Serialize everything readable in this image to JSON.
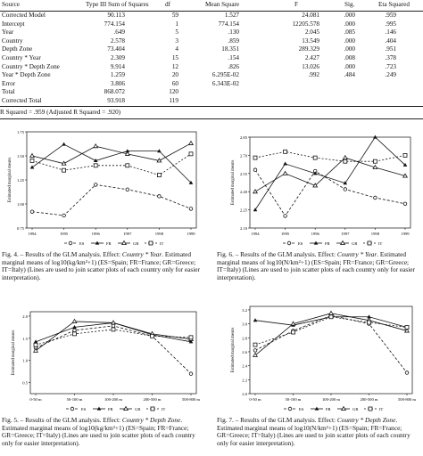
{
  "table": {
    "headers": [
      "Source",
      "Type III Sum of Squares",
      "df",
      "Mean Square",
      "F",
      "Sig.",
      "Eta Squared"
    ],
    "rows": [
      [
        "Corrected Model",
        "90.113",
        "59",
        "1.527",
        "24.081",
        ".000",
        ".959"
      ],
      [
        "Intercept",
        "774.154",
        "1",
        "774.154",
        "12205.578",
        ".000",
        ".995"
      ],
      [
        "Year",
        ".649",
        "5",
        ".130",
        "2.045",
        ".085",
        ".146"
      ],
      [
        "Country",
        "2.578",
        "3",
        ".859",
        "13.549",
        ".000",
        ".404"
      ],
      [
        "Depth Zone",
        "73.404",
        "4",
        "18.351",
        "289.329",
        ".000",
        ".951"
      ],
      [
        "Country * Year",
        "2.309",
        "15",
        ".154",
        "2.427",
        ".008",
        ".378"
      ],
      [
        "Country * Depth Zone",
        "9.914",
        "12",
        ".826",
        "13.026",
        ".000",
        ".723"
      ],
      [
        "Year * Depth Zone",
        "1.259",
        "20",
        "6.295E-02",
        ".992",
        ".484",
        ".249"
      ],
      [
        "Error",
        "3.806",
        "60",
        "6.343E-02",
        "",
        "",
        ""
      ],
      [
        "Total",
        "868.072",
        "120",
        "",
        "",
        "",
        ""
      ],
      [
        "Corrected Total",
        "93.918",
        "119",
        "",
        "",
        "",
        ""
      ]
    ],
    "r_squared": "R Squared = .959 (Adjusted R Squared = .920)"
  },
  "charts": [
    {
      "ylabel": "Estimated marginal means",
      "yticks": [
        "1.75",
        "1.50",
        "1.25",
        "1.00",
        "0.75"
      ],
      "xticks": [
        "1994",
        "1995",
        "1996",
        "1997",
        "1998",
        "1999"
      ],
      "legend": [
        "ES",
        "FR",
        "GR",
        "IT"
      ],
      "caption_lead": "Fig. 4. – Results of the GLM analysis. Effect: ",
      "caption_effect": "Country * Year",
      "caption_rest": ". Estimated marginal means of log10(kg/km²+1) (ES=Spain; FR=France; GR=Greece; IT=Italy) (Lines are used to join scatter plots of each country only for easier interpretation)."
    },
    {
      "ylabel": "Estimated marginal means",
      "yticks": [
        "2.85",
        "2.70",
        "2.55",
        "2.40",
        "2.25",
        "2.10"
      ],
      "xticks": [
        "1994",
        "1995",
        "1996",
        "1997",
        "1998",
        "1999"
      ],
      "legend": [
        "ES",
        "FR",
        "GR",
        "IT"
      ],
      "caption_lead": "Fig. 6. – Results of the GLM analysis. Effect: ",
      "caption_effect": "Country * Year",
      "caption_rest": ". Estimated marginal means of log10(N/km²+1) (ES=Spain; FR=France; GR=Greece; IT=Italy) (Lines are used to join scatter plots of each country only for easier interpretation)."
    },
    {
      "ylabel": "Estimated marginal means",
      "yticks": [
        "2.0",
        "1.5",
        "1.0",
        "0.5"
      ],
      "xticks": [
        "0-50 m",
        "50-100 m",
        "100-200 m",
        "200-500 m",
        "500-800 m"
      ],
      "legend": [
        "ES",
        "FR",
        "GR",
        "IT"
      ],
      "caption_lead": "Fig. 5. – Results of the GLM analysis. Effect: ",
      "caption_effect": "Country * Depth Zone",
      "caption_rest": ". Estimated marginal means of log10(kg/km²+1) (ES=Spain; FR=France; GR=Greece; IT=Italy) (Lines are used to join scatter plots of each country only for easier interpretation)."
    },
    {
      "ylabel": "Estimated marginal means",
      "yticks": [
        "3.2",
        "3.0",
        "2.8",
        "2.6",
        "2.4",
        "2.2",
        "2.0"
      ],
      "xticks": [
        "0-50 m",
        "50-100 m",
        "100-200 m",
        "200-500 m",
        "500-800 m"
      ],
      "legend": [
        "ES",
        "FR",
        "GR",
        "IT"
      ],
      "caption_lead": "Fig. 7. – Results of the GLM analysis. Effect: ",
      "caption_effect": "Country * Depth Zone",
      "caption_rest": ". Estimated marginal means of log10(N/km²+1) (ES=Spain; FR=France; GR=Greece; IT=Italy) (Lines are used to join scatter plots of each country only for easier interpretation)."
    }
  ],
  "chart_data": [
    {
      "type": "line",
      "x": [
        "1994",
        "1995",
        "1996",
        "1997",
        "1998",
        "1999"
      ],
      "ylim": [
        0.75,
        1.75
      ],
      "ylabel": "Estimated marginal means",
      "series": [
        {
          "name": "ES",
          "values": [
            0.92,
            0.88,
            1.2,
            1.15,
            1.08,
            0.95
          ]
        },
        {
          "name": "FR",
          "values": [
            1.38,
            1.62,
            1.45,
            1.55,
            1.55,
            1.22
          ]
        },
        {
          "name": "GR",
          "values": [
            1.5,
            1.42,
            1.6,
            1.52,
            1.45,
            1.63
          ]
        },
        {
          "name": "IT",
          "values": [
            1.45,
            1.35,
            1.4,
            1.4,
            1.3,
            1.52
          ]
        }
      ]
    },
    {
      "type": "line",
      "x": [
        "1994",
        "1995",
        "1996",
        "1997",
        "1998",
        "1999"
      ],
      "ylim": [
        2.1,
        2.85
      ],
      "ylabel": "Estimated marginal means",
      "series": [
        {
          "name": "ES",
          "values": [
            2.58,
            2.2,
            2.57,
            2.42,
            2.35,
            2.3
          ]
        },
        {
          "name": "FR",
          "values": [
            2.25,
            2.63,
            2.55,
            2.47,
            2.85,
            2.62
          ]
        },
        {
          "name": "GR",
          "values": [
            2.4,
            2.55,
            2.45,
            2.68,
            2.6,
            2.53
          ]
        },
        {
          "name": "IT",
          "values": [
            2.68,
            2.73,
            2.68,
            2.65,
            2.65,
            2.7
          ]
        }
      ]
    },
    {
      "type": "line",
      "x": [
        "0-50 m",
        "50-100 m",
        "100-200 m",
        "200-500 m",
        "500-800 m"
      ],
      "ylim": [
        0.25,
        2.1
      ],
      "ylabel": "Estimated marginal means",
      "series": [
        {
          "name": "ES",
          "values": [
            1.28,
            1.68,
            1.78,
            1.55,
            0.7
          ]
        },
        {
          "name": "FR",
          "values": [
            1.42,
            1.75,
            1.85,
            1.58,
            1.42
          ]
        },
        {
          "name": "GR",
          "values": [
            1.22,
            1.88,
            1.85,
            1.6,
            1.48
          ]
        },
        {
          "name": "IT",
          "values": [
            1.35,
            1.6,
            1.7,
            1.55,
            1.52
          ]
        }
      ]
    },
    {
      "type": "line",
      "x": [
        "0-50 m",
        "50-100 m",
        "100-200 m",
        "200-500 m",
        "500-800 m"
      ],
      "ylim": [
        2.0,
        3.25
      ],
      "ylabel": "Estimated marginal means",
      "series": [
        {
          "name": "ES",
          "values": [
            2.62,
            2.9,
            3.12,
            3.0,
            2.3
          ]
        },
        {
          "name": "FR",
          "values": [
            3.05,
            2.98,
            3.1,
            3.1,
            2.95
          ]
        },
        {
          "name": "GR",
          "values": [
            2.55,
            3.0,
            3.15,
            3.05,
            2.9
          ]
        },
        {
          "name": "IT",
          "values": [
            2.7,
            2.88,
            3.1,
            3.02,
            2.95
          ]
        }
      ]
    }
  ]
}
